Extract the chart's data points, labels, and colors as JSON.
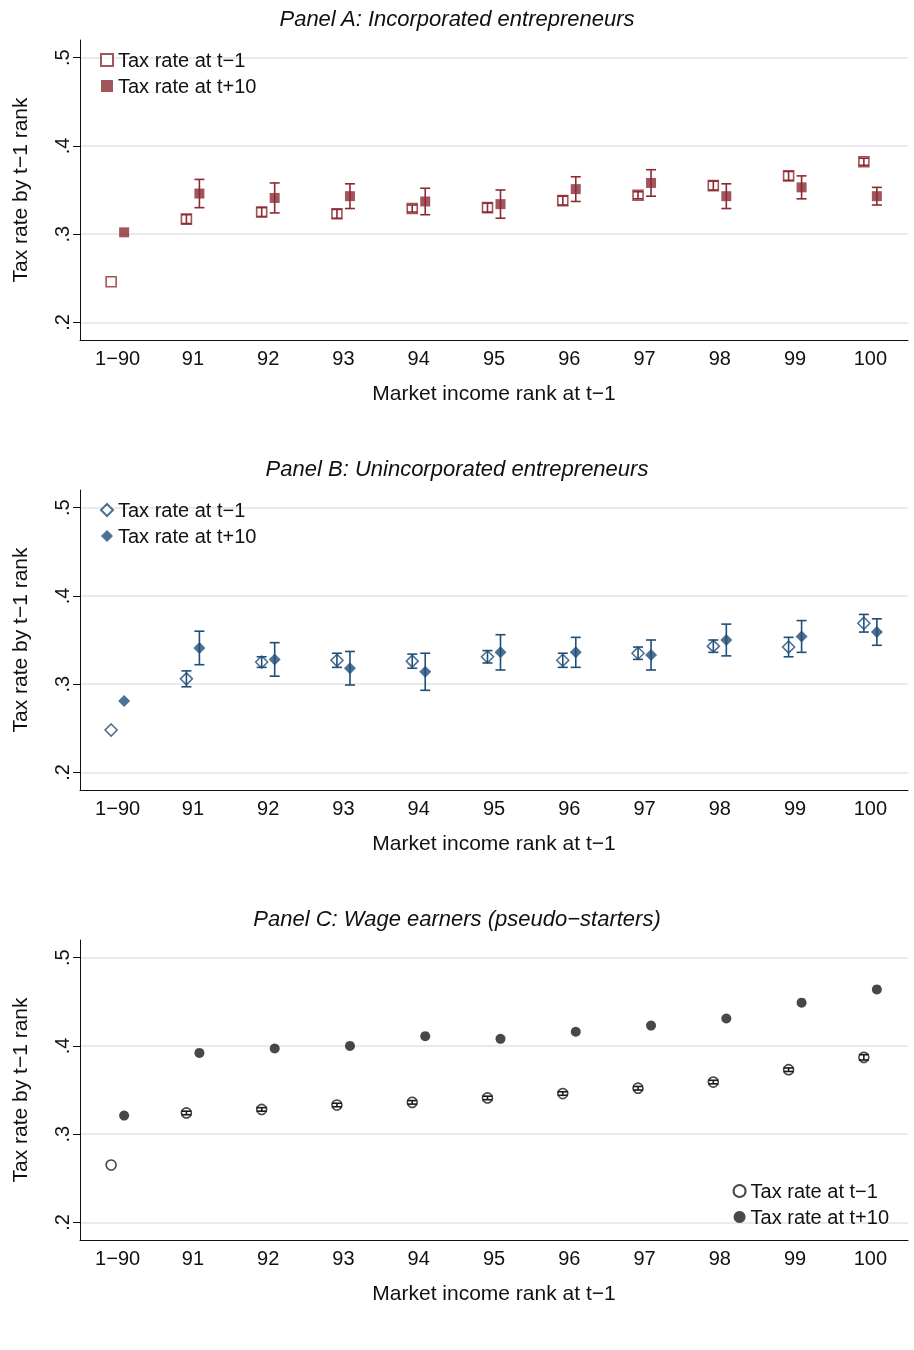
{
  "chart_data": [
    {
      "type": "scatter",
      "title": "Panel A: Incorporated entrepreneurs",
      "xlabel": "Market income rank at t−1",
      "ylabel": "Tax rate by t−1 rank",
      "categories": [
        "1−90",
        "91",
        "92",
        "93",
        "94",
        "95",
        "96",
        "97",
        "98",
        "99",
        "100"
      ],
      "ylim": [
        0.18,
        0.52
      ],
      "yticks": [
        {
          "value": 0.2,
          "label": ".2"
        },
        {
          "value": 0.3,
          "label": ".3"
        },
        {
          "value": 0.4,
          "label": ".4"
        },
        {
          "value": 0.5,
          "label": ".5"
        }
      ],
      "grid": "y",
      "legend": "top left",
      "marker": "square",
      "series": [
        {
          "name": "Tax rate at t−1",
          "color": "#8b2a33",
          "values": [
            0.246,
            0.317,
            0.325,
            0.323,
            0.329,
            0.33,
            0.338,
            0.344,
            0.355,
            0.366,
            0.382
          ],
          "errors": [
            null,
            0.005,
            0.005,
            0.005,
            0.004,
            0.005,
            0.005,
            0.004,
            0.005,
            0.005,
            0.004
          ]
        },
        {
          "name": "Tax rate at t+10",
          "color": "#8b2a33",
          "values": [
            0.302,
            0.346,
            0.341,
            0.343,
            0.337,
            0.334,
            0.351,
            0.358,
            0.343,
            0.353,
            0.343
          ],
          "errors": [
            null,
            0.016,
            0.017,
            0.014,
            0.015,
            0.016,
            0.014,
            0.015,
            0.014,
            0.013,
            0.01
          ]
        }
      ]
    },
    {
      "type": "scatter",
      "title": "Panel B: Unincorporated entrepreneurs",
      "xlabel": "Market income rank at t−1",
      "ylabel": "Tax rate by t−1 rank",
      "categories": [
        "1−90",
        "91",
        "92",
        "93",
        "94",
        "95",
        "96",
        "97",
        "98",
        "99",
        "100"
      ],
      "ylim": [
        0.18,
        0.52
      ],
      "yticks": [
        {
          "value": 0.2,
          "label": ".2"
        },
        {
          "value": 0.3,
          "label": ".3"
        },
        {
          "value": 0.4,
          "label": ".4"
        },
        {
          "value": 0.5,
          "label": ".5"
        }
      ],
      "grid": "y",
      "legend": "top left",
      "marker": "diamond",
      "series": [
        {
          "name": "Tax rate at t−1",
          "color": "#1f4e79",
          "values": [
            0.248,
            0.306,
            0.325,
            0.327,
            0.326,
            0.331,
            0.327,
            0.335,
            0.343,
            0.342,
            0.369
          ],
          "errors": [
            null,
            0.009,
            0.006,
            0.008,
            0.008,
            0.007,
            0.008,
            0.007,
            0.007,
            0.011,
            0.01
          ]
        },
        {
          "name": "Tax rate at t+10",
          "color": "#1f4e79",
          "values": [
            0.281,
            0.341,
            0.328,
            0.318,
            0.314,
            0.336,
            0.336,
            0.333,
            0.35,
            0.354,
            0.359
          ],
          "errors": [
            null,
            0.019,
            0.019,
            0.019,
            0.021,
            0.02,
            0.017,
            0.017,
            0.018,
            0.018,
            0.015
          ]
        }
      ]
    },
    {
      "type": "scatter",
      "title": "Panel C: Wage earners (pseudo−starters)",
      "xlabel": "Market income rank at t−1",
      "ylabel": "Tax rate by t−1 rank",
      "categories": [
        "1−90",
        "91",
        "92",
        "93",
        "94",
        "95",
        "96",
        "97",
        "98",
        "99",
        "100"
      ],
      "ylim": [
        0.18,
        0.52
      ],
      "yticks": [
        {
          "value": 0.2,
          "label": ".2"
        },
        {
          "value": 0.3,
          "label": ".3"
        },
        {
          "value": 0.4,
          "label": ".4"
        },
        {
          "value": 0.5,
          "label": ".5"
        }
      ],
      "grid": "y",
      "legend": "bottom right",
      "marker": "circle",
      "series": [
        {
          "name": "Tax rate at t−1",
          "color": "#1a1a1a",
          "values": [
            0.265,
            0.324,
            0.328,
            0.333,
            0.336,
            0.341,
            0.346,
            0.352,
            0.359,
            0.373,
            0.387
          ],
          "errors": [
            null,
            0.002,
            0.002,
            0.002,
            0.002,
            0.002,
            0.002,
            0.002,
            0.002,
            0.002,
            0.003
          ]
        },
        {
          "name": "Tax rate at t+10",
          "color": "#1a1a1a",
          "values": [
            0.321,
            0.392,
            0.397,
            0.4,
            0.411,
            0.408,
            0.416,
            0.423,
            0.431,
            0.449,
            0.464
          ]
        }
      ]
    }
  ]
}
